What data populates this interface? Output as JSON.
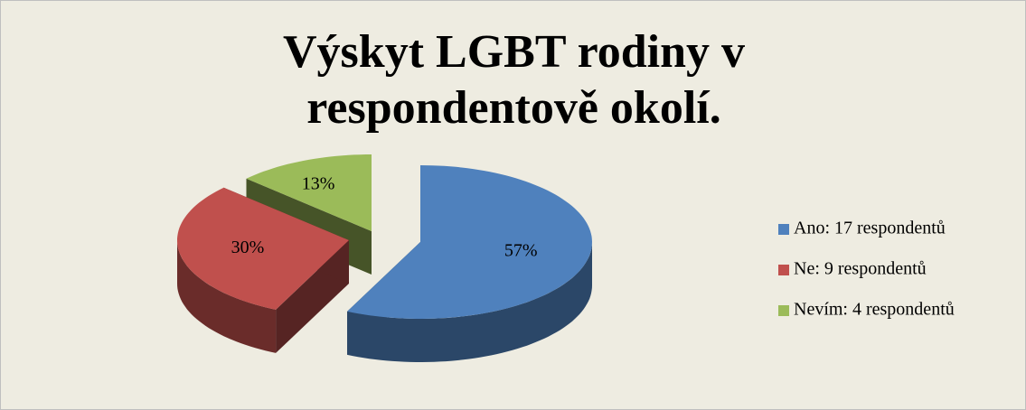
{
  "chart_data": {
    "type": "pie",
    "title": "Výskyt LGBT rodiny v respondentově okolí.",
    "categories": [
      "Ano: 17 respondentů",
      "Ne: 9 respondentů",
      "Nevím: 4 respondentů"
    ],
    "values": [
      57,
      30,
      13
    ],
    "value_labels": [
      "57%",
      "30%",
      "13%"
    ],
    "colors": [
      "#4f81bd",
      "#c0504d",
      "#9bbb59"
    ],
    "legend": "right"
  }
}
